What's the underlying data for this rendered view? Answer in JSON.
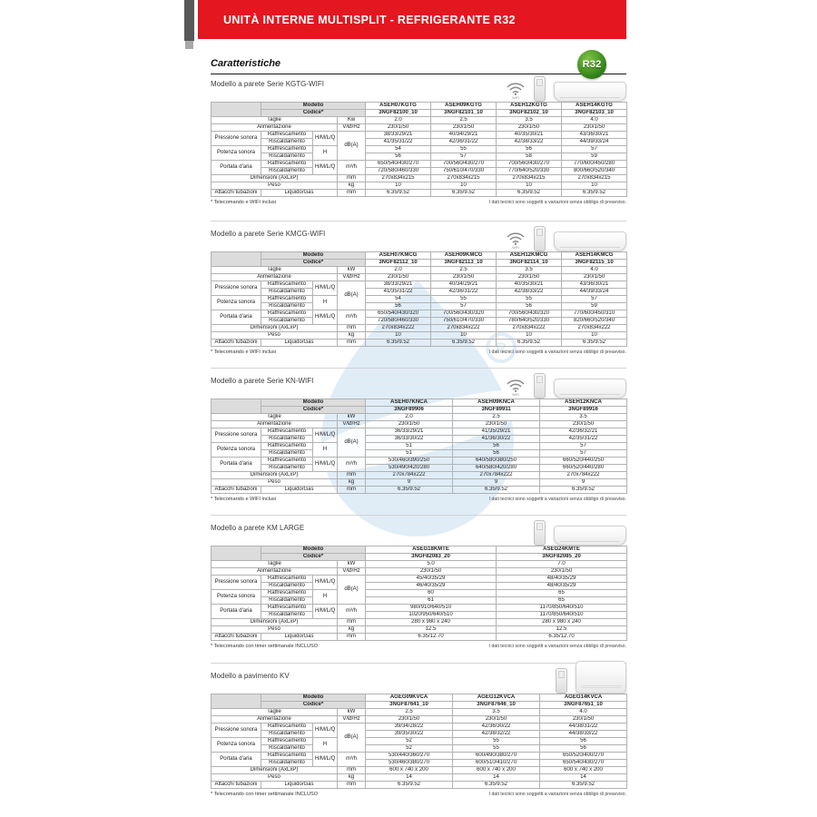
{
  "page": {
    "banner_title": "UNITÀ INTERNE MULTISPLIT - REFRIGERANTE R32",
    "heading": "Caratteristiche",
    "r32_label": "R32",
    "wifi_label": "WIFI",
    "accent_red": "#e4161f",
    "model_red": "#e2001a",
    "watermark_blue": "#d9e9f6"
  },
  "table_labels": {
    "modello": "Modello",
    "codice": "Codice*",
    "taglie": "Taglie",
    "alimentazione": "Alimentazione",
    "pressione_sonora": "Pressione sonora",
    "potenza_sonora": "Potenza sonora",
    "portata_aria": "Portata d'aria",
    "dimensioni": "Dimensioni (AxLxP)",
    "peso": "Peso",
    "attacchi": "Attacchi tubazioni",
    "raffrescamento": "Raffrescamento",
    "riscaldamento": "Riscaldamento",
    "liquido_gas": "Liquido/Gas",
    "hmlq": "H/M/L/Q",
    "h": "H",
    "unit_v": "V/Ø/Hz",
    "unit_db": "dB(A)",
    "unit_m3h": "m³/h",
    "unit_mm": "mm",
    "unit_kg": "kg"
  },
  "sections": [
    {
      "title": "Modello a parete Serie KGTG-WIFI",
      "taglie_unit": "Kw",
      "models": [
        "ASEH07KGTG",
        "ASEH09KGTG",
        "ASEH12KGTG",
        "ASEH14KGTG"
      ],
      "codes": [
        "3NGF82100_10",
        "3NGF82101_10",
        "3NGF82102_10",
        "3NGF82103_10"
      ],
      "rows": {
        "taglie": [
          "2.0",
          "2.5",
          "3.5",
          "4.0"
        ],
        "alimentazione": [
          "230/1/50",
          "230/1/50",
          "230/1/50",
          "230/1/50"
        ],
        "pressione_raff": [
          "38/33/29/21",
          "40/34/29/21",
          "40/35/30/21",
          "43/36/30/21"
        ],
        "pressione_risc": [
          "41/35/31/22",
          "42/36/31/22",
          "42/38/33/22",
          "44/39/33/24"
        ],
        "potenza_raff": [
          "54",
          "55",
          "56",
          "57"
        ],
        "potenza_risc": [
          "56",
          "57",
          "58",
          "59"
        ],
        "portata_raff": [
          "650/540/430/270",
          "700/560/430/270",
          "700/560/430/270",
          "770/600/450/280"
        ],
        "portata_risc": [
          "720/580/460/330",
          "750/610/470/330",
          "770/640/520/330",
          "800/660/520/340"
        ],
        "dimensioni": [
          "270x834x215",
          "270x834x215",
          "270x834x215",
          "270x834x215"
        ],
        "peso": [
          "10",
          "10",
          "10",
          "10"
        ],
        "attacchi": [
          "6.35/9.52",
          "6.35/9.52",
          "6.35/9.52",
          "6.35/9.52"
        ]
      },
      "footnote_left": "* Telecomando e WIFI inclusi",
      "footnote_right": "I dati tecnici sono soggetti a variazioni senza obbligo di preavviso."
    },
    {
      "title": "Modello a parete Serie KMCG-WIFI",
      "taglie_unit": "kW",
      "models": [
        "ASEH07KMCG",
        "ASEH09KMCG",
        "ASEH12KMCG",
        "ASEH14KMCG"
      ],
      "codes": [
        "3NGF82112_10",
        "3NGF82113_10",
        "3NGF82114_10",
        "3NGF82115_10"
      ],
      "rows": {
        "taglie": [
          "2.0",
          "2.5",
          "3.5",
          "4.0"
        ],
        "alimentazione": [
          "230/1/50",
          "230/1/50",
          "230/1/50",
          "230/1/50"
        ],
        "pressione_raff": [
          "38/33/29/21",
          "40/34/29/21",
          "40/35/30/21",
          "43/36/30/21"
        ],
        "pressione_risc": [
          "41/35/31/22",
          "42/36/31/22",
          "42/38/33/22",
          "44/39/33/24"
        ],
        "potenza_raff": [
          "54",
          "55",
          "55",
          "57"
        ],
        "potenza_risc": [
          "56",
          "57",
          "56",
          "59"
        ],
        "portata_raff": [
          "650/540/430/320",
          "700/560/430/320",
          "700/560/430/320",
          "770/600/450/310"
        ],
        "portata_risc": [
          "720/580/460/330",
          "750/610/470/330",
          "780/640/520/330",
          "820/660/520/340"
        ],
        "dimensioni": [
          "270x834x222",
          "270x834x222",
          "270x834x222",
          "270x834x222"
        ],
        "peso": [
          "10",
          "10",
          "10",
          "10"
        ],
        "attacchi": [
          "6.35/9.52",
          "6.35/9.52",
          "6.35/9.52",
          "6.35/9.52"
        ]
      },
      "footnote_left": "* Telecomando e WIFI inclusi",
      "footnote_right": "I dati tecnici sono soggetti a variazioni senza obbligo di preavviso."
    },
    {
      "title": "Modello a parete Serie KN-WIFI",
      "taglie_unit": "kW",
      "models": [
        "ASEH07KNCA",
        "ASEH09KNCA",
        "ASEH12KNCA"
      ],
      "codes": [
        "3NGF89906",
        "3NGF89911",
        "3NGF89916"
      ],
      "rows": {
        "taglie": [
          "2.0",
          "2.5",
          "3.5"
        ],
        "alimentazione": [
          "230/1/50",
          "230/1/50",
          "230/1/50"
        ],
        "pressione_raff": [
          "36/33/29/21",
          "41/35/29/21",
          "42/36/32/21"
        ],
        "pressione_risc": [
          "36/33/30/22",
          "41/36/30/22",
          "42/35/31/22"
        ],
        "potenza_raff": [
          "51",
          "56",
          "57"
        ],
        "potenza_risc": [
          "51",
          "56",
          "57"
        ],
        "portata_raff": [
          "530/460/390/250",
          "640/580/380/250",
          "660/520/440/250"
        ],
        "portata_risc": [
          "530/490/420/280",
          "640/580/420/280",
          "660/520/440/280"
        ],
        "dimensioni": [
          "270x784x222",
          "270x784x222",
          "270x784x222"
        ],
        "peso": [
          "9",
          "9",
          "9"
        ],
        "attacchi": [
          "6.35/9.52",
          "6.35/9.52",
          "6.35/9.52"
        ]
      },
      "footnote_left": "* Telecomando e WIFI inclusi",
      "footnote_right": "I dati tecnici sono soggetti a variazioni senza obbligo di preavviso."
    },
    {
      "title": "Modello a parete KM LARGE",
      "taglie_unit": "kW",
      "models": [
        "ASEG18KMTE",
        "ASEG24KMTE"
      ],
      "codes": [
        "3NGF82083_20",
        "3NGF82085_20"
      ],
      "rows": {
        "taglie": [
          "5.0",
          "7.0"
        ],
        "alimentazione": [
          "230/1/50",
          "230/1/50"
        ],
        "pressione_raff": [
          "45/40/35/29",
          "48/40/35/29"
        ],
        "pressione_risc": [
          "46/40/35/29",
          "48/40/35/29"
        ],
        "potenza_raff": [
          "60",
          "65"
        ],
        "potenza_risc": [
          "61",
          "65"
        ],
        "portata_raff": [
          "980/910/640/510",
          "1170/850/640/510"
        ],
        "portata_risc": [
          "1020/950/640/510",
          "1170/850/640/510"
        ],
        "dimensioni": [
          "280 x 980 x 240",
          "280 x 980 x 240"
        ],
        "peso": [
          "12.5",
          "12.5"
        ],
        "attacchi": [
          "6.35/12.70",
          "6.35/12.70"
        ]
      },
      "footnote_left": "* Telecomando con timer settimanale INCLUSO",
      "footnote_right": "I dati tecnici sono soggetti a variazioni senza obbligo di preavviso."
    },
    {
      "title": "Modello a pavimento KV",
      "taglie_unit": "kW",
      "models": [
        "AGEG09KVCA",
        "AGEG12KVCA",
        "AGEG14KVCA"
      ],
      "codes": [
        "3NGF87641_10",
        "3NGF87646_10",
        "3NGF87651_10"
      ],
      "rows": {
        "taglie": [
          "2.5",
          "3.5",
          "4.0"
        ],
        "alimentazione": [
          "230/1/50",
          "230/1/50",
          "230/1/50"
        ],
        "pressione_raff": [
          "39/34/28/22",
          "42/36/30/22",
          "44/38/31/22"
        ],
        "pressione_risc": [
          "39/35/30/22",
          "42/38/32/22",
          "44/38/33/22"
        ],
        "potenza_raff": [
          "52",
          "55",
          "56"
        ],
        "potenza_risc": [
          "52",
          "55",
          "56"
        ],
        "portata_raff": [
          "530/440/360/270",
          "600/490/380/270",
          "650/520/400/270"
        ],
        "portata_risc": [
          "530/460/380/270",
          "600/510/410/270",
          "650/540/430/270"
        ],
        "dimensioni": [
          "600 x 740 x 200",
          "600 x 740 x 200",
          "600 x 740 x 200"
        ],
        "peso": [
          "14",
          "14",
          "14"
        ],
        "attacchi": [
          "6.35/9.52",
          "6.35/9.52",
          "6.35/9.52"
        ]
      },
      "footnote_left": "* Telecomando con timer settimanale INCLUSO",
      "footnote_right": "I dati tecnici sono soggetti a variazioni senza obbligo di preavviso."
    }
  ]
}
